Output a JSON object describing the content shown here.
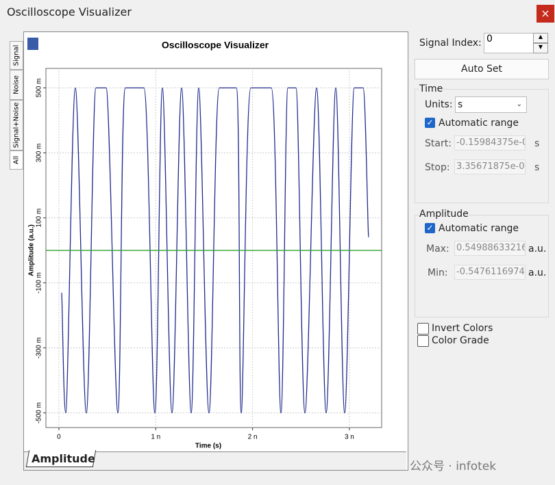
{
  "window": {
    "title": "Oscilloscope Visualizer",
    "close": "×"
  },
  "side_tabs": [
    "Signal",
    "Noise",
    "Signal+Noise",
    "All"
  ],
  "bottom_tab": "Amplitude",
  "chart_data": {
    "type": "line",
    "title": "Oscilloscope Visualizer",
    "x_label": "Time (s)",
    "y_label": "Amplitude (a.u.)",
    "xlim": [
      -0.134,
      3.333
    ],
    "ylim": [
      -0.545,
      0.56
    ],
    "xticks": [
      0,
      {
        "value": 1,
        "label": "1 n"
      },
      {
        "value": 2,
        "label": "2 n"
      },
      {
        "value": 3,
        "label": "3 n"
      }
    ],
    "yticks": [
      {
        "value": -0.5,
        "label": "-500 m"
      },
      {
        "value": -0.3,
        "label": "-300 m"
      },
      {
        "value": -0.1,
        "label": "-100 m"
      },
      {
        "value": 0.1,
        "label": "100 m"
      },
      {
        "value": 0.3,
        "label": "300 m"
      },
      {
        "value": 0.5,
        "label": "500 m"
      }
    ],
    "grid": true,
    "series": [
      {
        "name": "Signal",
        "color": "#1f2a8c",
        "x": [
          0.028,
          0.071,
          0.17,
          0.283,
          0.382,
          0.488,
          0.609,
          0.686,
          0.878,
          0.991,
          1.069,
          1.168,
          1.267,
          1.366,
          1.444,
          1.55,
          1.656,
          1.833,
          1.883,
          1.982,
          2.194,
          2.293,
          2.364,
          2.449,
          2.541,
          2.661,
          2.76,
          2.859,
          2.951,
          3.05,
          3.142,
          3.199
        ],
        "values": [
          -0.13,
          -0.5,
          0.5,
          -0.5,
          0.5,
          0.5,
          -0.5,
          0.5,
          0.5,
          -0.5,
          0.5,
          -0.5,
          0.5,
          -0.5,
          0.5,
          -0.5,
          0.5,
          0.5,
          -0.5,
          0.5,
          0.5,
          -0.5,
          0.5,
          0.5,
          -0.5,
          0.5,
          -0.5,
          0.5,
          -0.5,
          0.5,
          0.5,
          0.04
        ]
      },
      {
        "name": "Noise",
        "color": "#2ca02c",
        "x": [
          -0.13,
          3.33
        ],
        "values": [
          0,
          0
        ]
      }
    ]
  },
  "panel": {
    "signal_index_label": "Signal Index:",
    "signal_index": "0",
    "auto_set": "Auto Set",
    "time": {
      "title": "Time",
      "units_label": "Units:",
      "units": "s",
      "auto": "Automatic range",
      "start_label": "Start:",
      "start": "-0.15984375e-0",
      "start_unit": "s",
      "stop_label": "Stop:",
      "stop": "3.35671875e-0",
      "stop_unit": "s"
    },
    "amplitude": {
      "title": "Amplitude",
      "auto": "Automatic range",
      "max_label": "Max:",
      "max": "0.54988633216",
      "max_unit": "a.u.",
      "min_label": "Min:",
      "min": "-0.5476116974",
      "min_unit": "a.u."
    },
    "invert_colors": "Invert Colors",
    "color_grade": "Color Grade"
  },
  "watermark": "公众号 · infotek"
}
